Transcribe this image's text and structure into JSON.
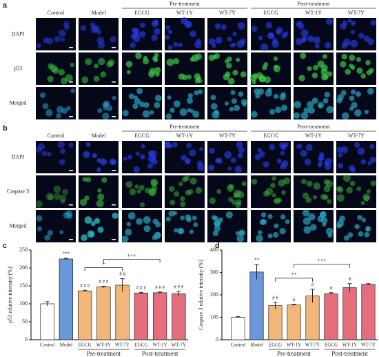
{
  "panels": [
    {
      "label": "a",
      "groups": [
        "Pre-treatment",
        "Post-treatment"
      ],
      "columns": [
        "Control",
        "Model",
        "EGCG",
        "WT-1Y",
        "WT-7Y",
        "EGCG",
        "WT-1Y",
        "WT-7Y"
      ],
      "rows": [
        "DAPI",
        "p53",
        "Merged"
      ]
    },
    {
      "label": "b",
      "groups": [
        "Pre-treatment",
        "Post-treatment"
      ],
      "columns": [
        "Control",
        "Model",
        "EGCG",
        "WT-1Y",
        "WT-7Y",
        "EGCG",
        "WT-1Y",
        "WT-7Y"
      ],
      "rows": [
        "DAPI",
        "Caspase 3",
        "Merged"
      ]
    }
  ],
  "chart_data": [
    {
      "type": "bar",
      "label": "c",
      "ylabel": "p53 relative intensity (%)",
      "categories": [
        "Control",
        "Model",
        "EGCG",
        "WT-1Y",
        "WT-7Y",
        "EGCG",
        "WT-1Y",
        "WT-7Y"
      ],
      "groups": [
        "Pre-treatment",
        "Post-treatment"
      ],
      "values": [
        100,
        225,
        136,
        147,
        152,
        130,
        131,
        128
      ],
      "errors": [
        6,
        2,
        2,
        2,
        18,
        2,
        2,
        7
      ],
      "colors": [
        "#ffffff",
        "#6a98d8",
        "#f2b57a",
        "#f2b57a",
        "#f2b57a",
        "#e46e7c",
        "#e46e7c",
        "#e46e7c"
      ],
      "annotations": [
        null,
        "***",
        "# # #",
        "# # #",
        "# #",
        "# # #",
        "# # #",
        "# # #"
      ],
      "brackets": [
        "+",
        "+++"
      ],
      "ylim": [
        0,
        250
      ],
      "yticks": [
        0,
        50,
        100,
        150,
        200,
        250
      ]
    },
    {
      "type": "bar",
      "label": "d",
      "ylabel": "Caspase 3 relative intensity (%)",
      "categories": [
        "Control",
        "Model",
        "EGCG",
        "WT-1Y",
        "WT-7Y",
        "EGCG",
        "WT-1Y",
        "WT-7Y"
      ],
      "groups": [
        "Pre-treatment",
        "Post-treatment"
      ],
      "values": [
        100,
        302,
        152,
        155,
        195,
        205,
        232,
        247
      ],
      "errors": [
        3,
        33,
        15,
        3,
        30,
        5,
        18,
        3
      ],
      "colors": [
        "#ffffff",
        "#6a98d8",
        "#f2b57a",
        "#f2b57a",
        "#f2b57a",
        "#e46e7c",
        "#e46e7c",
        "#e46e7c"
      ],
      "annotations": [
        null,
        "**",
        "# #",
        "#",
        "#",
        "#",
        "#",
        null
      ],
      "brackets": [
        "++",
        "+++"
      ],
      "ylim": [
        0,
        400
      ],
      "yticks": [
        0,
        100,
        200,
        300,
        400
      ]
    }
  ]
}
